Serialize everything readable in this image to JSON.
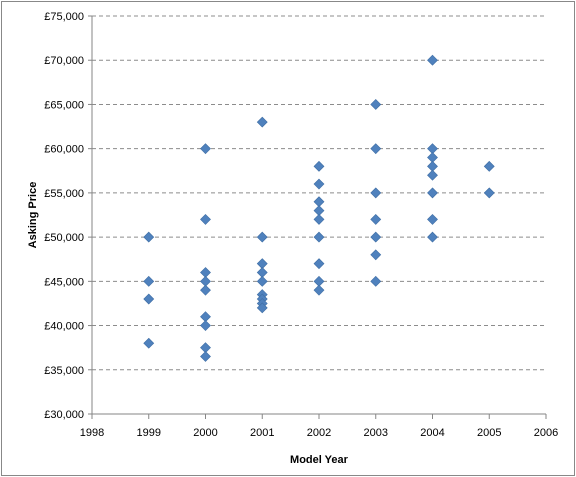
{
  "chart_data": {
    "type": "scatter",
    "xlabel": "Model Year",
    "ylabel": "Asking Price",
    "xlim": [
      1998,
      2006
    ],
    "ylim": [
      30000,
      75000
    ],
    "x_ticks": [
      "1998",
      "1999",
      "2000",
      "2001",
      "2002",
      "2003",
      "2004",
      "2005",
      "2006"
    ],
    "y_ticks": [
      "£30,000",
      "£35,000",
      "£40,000",
      "£45,000",
      "£50,000",
      "£55,000",
      "£60,000",
      "£65,000",
      "£70,000",
      "£75,000"
    ],
    "grid": "horizontal dashed",
    "marker": "diamond",
    "marker_color": "#4f81bd",
    "points": [
      [
        1999,
        50000
      ],
      [
        1999,
        45000
      ],
      [
        1999,
        43000
      ],
      [
        1999,
        38000
      ],
      [
        2000,
        60000
      ],
      [
        2000,
        52000
      ],
      [
        2000,
        46000
      ],
      [
        2000,
        45000
      ],
      [
        2000,
        44000
      ],
      [
        2000,
        41000
      ],
      [
        2000,
        40000
      ],
      [
        2000,
        37500
      ],
      [
        2000,
        36500
      ],
      [
        2001,
        63000
      ],
      [
        2001,
        50000
      ],
      [
        2001,
        47000
      ],
      [
        2001,
        46000
      ],
      [
        2001,
        45000
      ],
      [
        2001,
        43500
      ],
      [
        2001,
        43000
      ],
      [
        2001,
        42500
      ],
      [
        2001,
        42000
      ],
      [
        2002,
        58000
      ],
      [
        2002,
        56000
      ],
      [
        2002,
        54000
      ],
      [
        2002,
        53000
      ],
      [
        2002,
        52000
      ],
      [
        2002,
        50000
      ],
      [
        2002,
        47000
      ],
      [
        2002,
        45000
      ],
      [
        2002,
        44000
      ],
      [
        2003,
        65000
      ],
      [
        2003,
        60000
      ],
      [
        2003,
        55000
      ],
      [
        2003,
        52000
      ],
      [
        2003,
        50000
      ],
      [
        2003,
        48000
      ],
      [
        2003,
        45000
      ],
      [
        2004,
        70000
      ],
      [
        2004,
        60000
      ],
      [
        2004,
        59000
      ],
      [
        2004,
        58000
      ],
      [
        2004,
        57000
      ],
      [
        2004,
        55000
      ],
      [
        2004,
        52000
      ],
      [
        2004,
        50000
      ],
      [
        2005,
        58000
      ],
      [
        2005,
        55000
      ]
    ]
  }
}
